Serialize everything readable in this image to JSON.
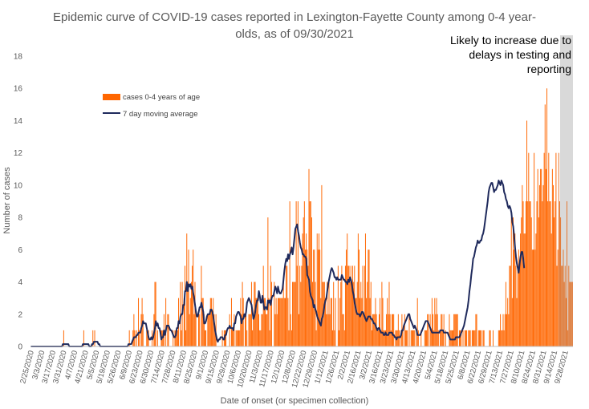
{
  "chart_data": {
    "type": "bar",
    "title_line1": "Epidemic curve of COVID-19 cases reported in Lexington-Fayette County among 0-4 year-",
    "title_line2": "olds, as of 09/30/2021",
    "xlabel": "Date of onset (or specimen collection)",
    "ylabel": "Number of cases",
    "ylim": [
      0,
      18
    ],
    "yticks": [
      "0",
      "2",
      "4",
      "6",
      "8",
      "10",
      "12",
      "14",
      "16",
      "18"
    ],
    "grid": false,
    "start_date": "2/25/2020",
    "end_date": "9/30/2021",
    "x_tick_labels": [
      "2/25/2020",
      "3/3/2020",
      "3/17/2020",
      "3/31/2020",
      "4/7/2020",
      "4/21/2020",
      "5/5/2020",
      "5/19/2020",
      "5/26/2020",
      "6/9/2020",
      "6/23/2020",
      "6/30/2020",
      "7/14/2020",
      "7/28/2020",
      "8/11/2020",
      "8/25/2020",
      "9/1/2020",
      "9/15/2020",
      "9/29/2020",
      "10/6/2020",
      "10/20/2020",
      "11/3/2020",
      "11/17/2020",
      "12/1/2020",
      "12/8/2020",
      "12/22/2020",
      "12/29/2020",
      "1/12/2021",
      "1/26/2021",
      "2/2/2021",
      "2/16/2021",
      "3/2/2021",
      "3/16/2021",
      "3/23/2021",
      "3/30/2021",
      "4/13/2021",
      "4/20/2021",
      "5/4/2021",
      "5/18/2021",
      "5/25/2021",
      "6/8/2021",
      "6/22/2021",
      "6/29/2021",
      "7/13/2021",
      "7/27/2021",
      "8/10/2021",
      "8/24/2021",
      "8/31/2021",
      "9/14/2021",
      "9/28/2021"
    ],
    "series": [
      {
        "name": "cases 0-4 years of age",
        "color": "#FF6600",
        "values": [
          0,
          0,
          0,
          0,
          0,
          0,
          0,
          0,
          0,
          0,
          0,
          0,
          0,
          0,
          0,
          0,
          0,
          0,
          0,
          0,
          0,
          0,
          0,
          0,
          0,
          0,
          0,
          0,
          0,
          0,
          0,
          0,
          0,
          0,
          0,
          0,
          1,
          0,
          0,
          0,
          0,
          0,
          0,
          0,
          0,
          0,
          0,
          0,
          0,
          0,
          0,
          0,
          0,
          0,
          0,
          0,
          0,
          0,
          1,
          0,
          0,
          0,
          0,
          0,
          0,
          0,
          0,
          0,
          1,
          0,
          1,
          0,
          0,
          0,
          0,
          0,
          0,
          0,
          0,
          0,
          0,
          0,
          0,
          0,
          0,
          0,
          0,
          0,
          0,
          0,
          0,
          0,
          0,
          0,
          0,
          0,
          0,
          0,
          0,
          0,
          0,
          0,
          0,
          0,
          0,
          0,
          0,
          0,
          1,
          0,
          0,
          0,
          1,
          2,
          1,
          0,
          1,
          0,
          3,
          1,
          0,
          2,
          3,
          2,
          0,
          0,
          0,
          1,
          1,
          1,
          0,
          0,
          0,
          1,
          0,
          2,
          4,
          4,
          0,
          1,
          0,
          0,
          0,
          1,
          1,
          1,
          2,
          0,
          3,
          0,
          2,
          2,
          0,
          0,
          0,
          0,
          1,
          0,
          1,
          1,
          1,
          1,
          3,
          0,
          4,
          1,
          4,
          0,
          3,
          5,
          1,
          7,
          4,
          6,
          2,
          3,
          4,
          5,
          6,
          2,
          4,
          2,
          0,
          0,
          2,
          2,
          0,
          5,
          3,
          3,
          2,
          1,
          1,
          0,
          2,
          2,
          2,
          3,
          3,
          2,
          3,
          2,
          1,
          2,
          0,
          0,
          0,
          0,
          0,
          0,
          1,
          0,
          1,
          1,
          1,
          0,
          0,
          0,
          2,
          0,
          3,
          1,
          1,
          2,
          0,
          1,
          1,
          1,
          1,
          1,
          3,
          2,
          4,
          3,
          0,
          2,
          2,
          1,
          0,
          2,
          2,
          2,
          4,
          1,
          2,
          4,
          4,
          3,
          3,
          3,
          2,
          1,
          1,
          2,
          2,
          5,
          3,
          3,
          2,
          2,
          8,
          3,
          1,
          5,
          4,
          0,
          0,
          4,
          2,
          3,
          2,
          3,
          3,
          3,
          3,
          3,
          3,
          4,
          3,
          3,
          5,
          5,
          3,
          1,
          9,
          2,
          1,
          4,
          4,
          4,
          4,
          9,
          5,
          9,
          2,
          5,
          4,
          5,
          7,
          8,
          9,
          6,
          7,
          6,
          5,
          11,
          9,
          9,
          8,
          4,
          6,
          6,
          4,
          1,
          7,
          6,
          7,
          6,
          3,
          10,
          4,
          4,
          4,
          3,
          2,
          4,
          2,
          4,
          2,
          3,
          3,
          1,
          4,
          1,
          3,
          0,
          0,
          5,
          1,
          3,
          4,
          5,
          2,
          2,
          1,
          5,
          6,
          7,
          5,
          5,
          4,
          5,
          4,
          5,
          4,
          5,
          3,
          3,
          4,
          7,
          6,
          3,
          4,
          3,
          5,
          2,
          5,
          7,
          3,
          4,
          6,
          6,
          3,
          4,
          1,
          2,
          2,
          2,
          3,
          2,
          1,
          1,
          2,
          3,
          1,
          4,
          3,
          1,
          1,
          1,
          2,
          3,
          2,
          4,
          2,
          1,
          2,
          2,
          2,
          0,
          1,
          1,
          1,
          2,
          1,
          0,
          1,
          2,
          1,
          0,
          2,
          1,
          1,
          1,
          0,
          2,
          0,
          1,
          1,
          1,
          1,
          1,
          0,
          1,
          3,
          1,
          0,
          0,
          1,
          0,
          0,
          0,
          1,
          1,
          1,
          2,
          2,
          0,
          2,
          1,
          3,
          2,
          1,
          3,
          2,
          3,
          2,
          1,
          0,
          1,
          2,
          2,
          1,
          2,
          0,
          1,
          0,
          0,
          0,
          2,
          1,
          1,
          1,
          1,
          2,
          2,
          2,
          2,
          2,
          0,
          1,
          1,
          1,
          0,
          1,
          0,
          1,
          1,
          1,
          0,
          1,
          1,
          1,
          0,
          1,
          1,
          1,
          1,
          2,
          2,
          0,
          1,
          1,
          1,
          1,
          0,
          1,
          1,
          0,
          0,
          0,
          0,
          0,
          1,
          1,
          0,
          0,
          1,
          0,
          0,
          0,
          0,
          0,
          1,
          1,
          2,
          1,
          1,
          2,
          1,
          2,
          4,
          2,
          3,
          2,
          5,
          5,
          8,
          3,
          8,
          6,
          7,
          5,
          3,
          5,
          6,
          5,
          7,
          8,
          10,
          9,
          7,
          7,
          9,
          14,
          9,
          12,
          9,
          9,
          8,
          6,
          6,
          12,
          6,
          7,
          9,
          11,
          8,
          10,
          11,
          11,
          9,
          10,
          12,
          15,
          11,
          16,
          9,
          12,
          9,
          9,
          7,
          11,
          10,
          8,
          9,
          12,
          5,
          6,
          12,
          9,
          8,
          5,
          5,
          6,
          4,
          5,
          3,
          9,
          1,
          5,
          4,
          4,
          4,
          4
        ]
      },
      {
        "name": "7 day moving average",
        "color": "#1F2A5C",
        "values": [
          0,
          0,
          0,
          0,
          0,
          0,
          0,
          0,
          0,
          0,
          0,
          0,
          0,
          0,
          0,
          0,
          0,
          0,
          0,
          0,
          0,
          0,
          0,
          0,
          0,
          0,
          0,
          0,
          0,
          0,
          0,
          0,
          0,
          0,
          0,
          0.14,
          0.14,
          0.14,
          0.14,
          0.14,
          0.14,
          0.14,
          0,
          0,
          0,
          0,
          0,
          0,
          0,
          0,
          0,
          0,
          0,
          0,
          0,
          0,
          0,
          0.14,
          0.14,
          0.14,
          0.14,
          0.14,
          0.14,
          0.14,
          0,
          0,
          0,
          0.14,
          0.14,
          0.29,
          0.29,
          0.29,
          0.29,
          0.29,
          0.14,
          0.14,
          0,
          0,
          0,
          0,
          0,
          0,
          0,
          0,
          0,
          0,
          0,
          0,
          0,
          0,
          0,
          0,
          0,
          0,
          0,
          0,
          0,
          0,
          0,
          0,
          0,
          0,
          0,
          0,
          0,
          0,
          0,
          0.14,
          0.14,
          0.14,
          0.14,
          0.29,
          0.43,
          0.57,
          0.57,
          0.57,
          0.71,
          0.71,
          0.86,
          0.86,
          0.86,
          1.14,
          1.29,
          1.57,
          1.43,
          1.43,
          1.43,
          1.14,
          0.86,
          0.57,
          0.43,
          0.43,
          0.57,
          0.43,
          0.57,
          0.86,
          1.14,
          1.57,
          1.29,
          1.43,
          1.14,
          1.14,
          0.86,
          0.43,
          0.57,
          0.57,
          1.0,
          0.71,
          1.0,
          1.29,
          1.29,
          1.29,
          1.14,
          1,
          1,
          0.86,
          0.71,
          0.57,
          0.57,
          0.71,
          1.14,
          1.14,
          1.57,
          1.43,
          1.86,
          2.0,
          2.0,
          2.57,
          2.57,
          3.43,
          3.43,
          4.0,
          3.43,
          3.86,
          3.71,
          3.86,
          3.57,
          3.71,
          3.29,
          3.0,
          2.57,
          2.14,
          1.86,
          1.86,
          2.14,
          2.43,
          2.43,
          2.71,
          2.43,
          2.14,
          1.43,
          1.43,
          1.57,
          1.86,
          2.0,
          2.0,
          2.0,
          2.29,
          2.29,
          2.14,
          1.86,
          1.43,
          1.0,
          0.71,
          0.43,
          0.29,
          0.43,
          0.43,
          0.57,
          0.57,
          0.57,
          0.43,
          0.43,
          0.71,
          0.71,
          1.0,
          1.14,
          1.14,
          1.29,
          1.14,
          1.14,
          1.14,
          1.0,
          1.43,
          1.43,
          1.86,
          2.0,
          2.14,
          2.14,
          2.0,
          1.86,
          1.43,
          1.71,
          1.71,
          2.0,
          1.86,
          2.14,
          2.71,
          2.86,
          3.0,
          2.86,
          2.71,
          2.57,
          2.14,
          1.71,
          1.86,
          2.14,
          2.57,
          2.86,
          2.86,
          3.43,
          3.14,
          2.71,
          2.71,
          3.14,
          2.71,
          2.29,
          2.43,
          2.43,
          2.29,
          2.86,
          2.71,
          2.86,
          2.57,
          3.0,
          3.14,
          3.14,
          3.43,
          3.71,
          3.57,
          3.29,
          3.71,
          3.43,
          3.29,
          3.29,
          3.43,
          3.57,
          4.14,
          4.71,
          5.14,
          5.43,
          5.29,
          5.71,
          5.43,
          5.71,
          5.86,
          6.14,
          5.71,
          6.14,
          6.71,
          7.29,
          7.43,
          7.57,
          7.14,
          6.86,
          6.43,
          6.14,
          6.0,
          5.71,
          5.71,
          5.57,
          5.57,
          5.43,
          4.43,
          4.29,
          4.14,
          3.43,
          3.14,
          3.0,
          2.86,
          2.43,
          2.57,
          2.29,
          2.14,
          1.86,
          1.71,
          1.57,
          1.43,
          1.29,
          1.71,
          1.86,
          2.14,
          2.57,
          2.86,
          3.0,
          3.43,
          3.86,
          4.14,
          4.43,
          4.71,
          4.86,
          4.71,
          4.57,
          4.29,
          4.29,
          4.14,
          4.29,
          4.14,
          4.14,
          4.14,
          4.14,
          4.43,
          4.29,
          4.14,
          4.14,
          4.0,
          4.0,
          3.86,
          4.14,
          4.0,
          4.29,
          4.14,
          3.86,
          3.43,
          3.14,
          2.71,
          2.43,
          2.14,
          2.0,
          2.0,
          2.0,
          1.86,
          2.0,
          2.14,
          2.14,
          2.0,
          1.86,
          1.71,
          1.57,
          1.71,
          1.86,
          1.86,
          1.86,
          1.71,
          1.71,
          1.57,
          1.43,
          1.43,
          1.29,
          1.14,
          1.0,
          1.14,
          1.14,
          1.0,
          0.86,
          0.86,
          0.86,
          0.71,
          0.71,
          0.86,
          0.71,
          0.71,
          0.71,
          0.86,
          0.86,
          0.86,
          0.86,
          0.71,
          0.71,
          0.57,
          0.57,
          0.43,
          0.57,
          0.57,
          0.57,
          0.57,
          0.71,
          1.0,
          1.0,
          1.29,
          1.43,
          1.57,
          1.71,
          1.86,
          2.0,
          2.0,
          1.71,
          1.57,
          1.43,
          1.29,
          1.14,
          1.29,
          1.14,
          1.0,
          0.71,
          0.71,
          0.71,
          0.71,
          0.86,
          1.0,
          1.14,
          1.29,
          1.43,
          1.57,
          1.57,
          1.57,
          1.43,
          1.29,
          1.14,
          1.0,
          0.86,
          0.86,
          0.86,
          0.86,
          0.86,
          0.86,
          0.86,
          0.86,
          0.86,
          1.0,
          1.0,
          1.0,
          1.0,
          0.86,
          0.86,
          0.86,
          0.86,
          0.86,
          0.71,
          0.57,
          0.43,
          0.43,
          0.43,
          0.43,
          0.43,
          0.43,
          0.57,
          0.57,
          0.57,
          0.57,
          0.57,
          0.71,
          0.86,
          1.0,
          1.14,
          1.29,
          1.57,
          1.86,
          2.14,
          2.43,
          2.86,
          3.43,
          3.86,
          4.43,
          4.86,
          5.43,
          5.57,
          5.86,
          6.14,
          6.29,
          6.57,
          6.43,
          6.43,
          6.57,
          6.57,
          6.86,
          7.0,
          7.29,
          7.71,
          8.14,
          8.57,
          9.0,
          9.57,
          9.86,
          10.0,
          10.14,
          10.14,
          9.86,
          9.57,
          9.71,
          9.71,
          9.86,
          10.0,
          10.29,
          10.14,
          10.0,
          10.29,
          10.14,
          10.0,
          9.57,
          9.43,
          9.14,
          9.0,
          8.71,
          8.57,
          8.71,
          8.57,
          8.29,
          7.71,
          7.43,
          6.86,
          6.14,
          5.57,
          5.14,
          4.86,
          4.57,
          5.14,
          5.57,
          5.86,
          5.86,
          5.43,
          4.86
        ]
      }
    ],
    "legend": [
      "cases 0-4 years of age",
      "7 day moving average"
    ],
    "legend_position": "upper-left",
    "annotation": {
      "lines": [
        "Likely to increase due to",
        "delays in testing and",
        "reporting"
      ],
      "note": "shaded region at right end of chart"
    }
  }
}
